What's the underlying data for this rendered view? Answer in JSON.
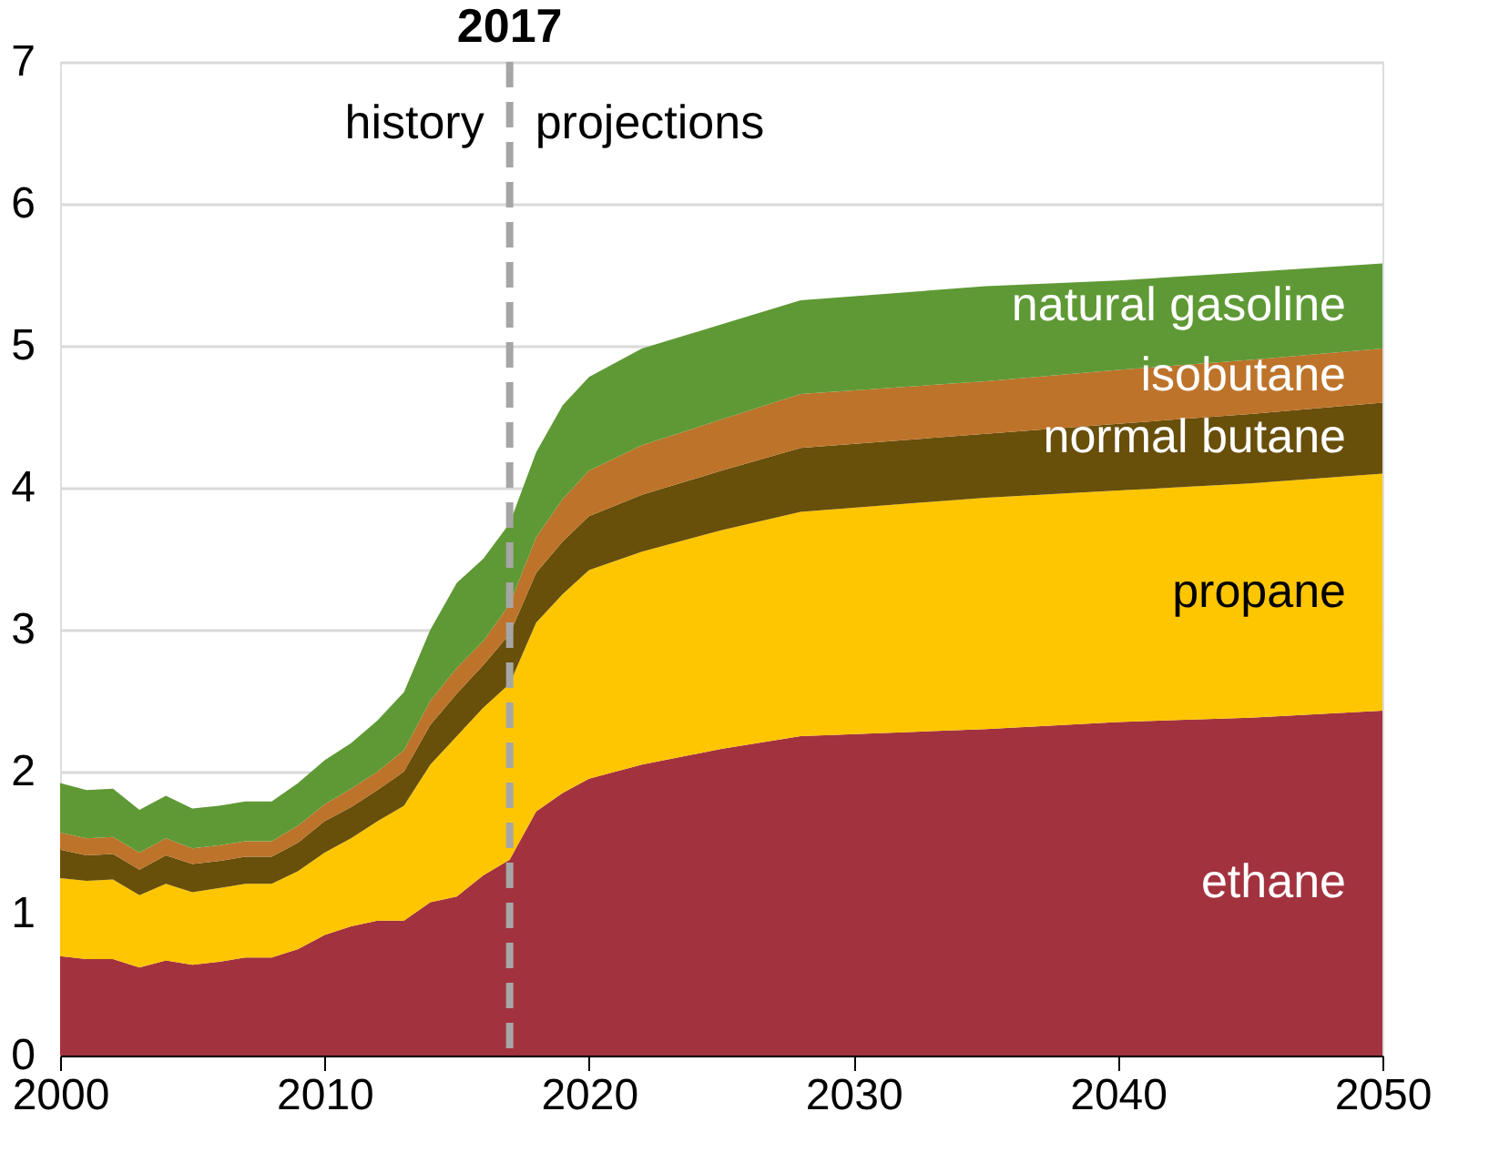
{
  "chart_data": {
    "type": "area",
    "stacked": true,
    "grid": "y",
    "legend": false,
    "x": [
      2000,
      2001,
      2002,
      2003,
      2004,
      2005,
      2006,
      2007,
      2008,
      2009,
      2010,
      2011,
      2012,
      2013,
      2014,
      2015,
      2016,
      2017,
      2018,
      2019,
      2020,
      2022,
      2025,
      2028,
      2035,
      2040,
      2045,
      2050
    ],
    "series": [
      {
        "name": "ethane",
        "color": "#a3323f",
        "values": [
          0.7,
          0.68,
          0.68,
          0.62,
          0.67,
          0.64,
          0.66,
          0.69,
          0.69,
          0.75,
          0.85,
          0.91,
          0.95,
          0.95,
          1.08,
          1.12,
          1.27,
          1.38,
          1.72,
          1.85,
          1.95,
          2.05,
          2.16,
          2.25,
          2.3,
          2.35,
          2.38,
          2.43
        ]
      },
      {
        "name": "propane",
        "color": "#fdc600",
        "values": [
          0.55,
          0.55,
          0.56,
          0.51,
          0.54,
          0.51,
          0.52,
          0.52,
          0.52,
          0.55,
          0.58,
          0.62,
          0.7,
          0.81,
          0.97,
          1.13,
          1.18,
          1.24,
          1.33,
          1.4,
          1.47,
          1.5,
          1.54,
          1.58,
          1.63,
          1.63,
          1.65,
          1.67
        ]
      },
      {
        "name": "normal butane",
        "color": "#684f0a",
        "values": [
          0.2,
          0.18,
          0.18,
          0.18,
          0.2,
          0.2,
          0.19,
          0.19,
          0.19,
          0.2,
          0.22,
          0.22,
          0.22,
          0.24,
          0.28,
          0.3,
          0.3,
          0.35,
          0.35,
          0.37,
          0.38,
          0.4,
          0.42,
          0.45,
          0.45,
          0.47,
          0.49,
          0.5
        ]
      },
      {
        "name": "isobutane",
        "color": "#bd732a",
        "values": [
          0.12,
          0.12,
          0.12,
          0.12,
          0.12,
          0.11,
          0.11,
          0.11,
          0.11,
          0.12,
          0.12,
          0.13,
          0.13,
          0.15,
          0.17,
          0.18,
          0.17,
          0.21,
          0.25,
          0.3,
          0.32,
          0.35,
          0.36,
          0.38,
          0.37,
          0.38,
          0.38,
          0.38
        ]
      },
      {
        "name": "natural gasoline",
        "color": "#5f9935",
        "values": [
          0.35,
          0.34,
          0.34,
          0.3,
          0.3,
          0.28,
          0.28,
          0.28,
          0.28,
          0.3,
          0.31,
          0.32,
          0.36,
          0.41,
          0.5,
          0.6,
          0.58,
          0.57,
          0.6,
          0.66,
          0.66,
          0.68,
          0.67,
          0.66,
          0.67,
          0.63,
          0.62,
          0.6
        ]
      }
    ],
    "xlim": [
      2000,
      2050
    ],
    "xticks": [
      2000,
      2010,
      2020,
      2030,
      2040,
      2050
    ],
    "ylim": [
      0,
      7
    ],
    "yticks": [
      0,
      1,
      2,
      3,
      4,
      5,
      6,
      7
    ],
    "ref_lines": [
      {
        "axis": "x",
        "value": 2017,
        "label": "2017",
        "color": "#a6a6a6",
        "line_style": "dashed"
      }
    ],
    "annotations": [
      "history",
      "projections"
    ]
  }
}
